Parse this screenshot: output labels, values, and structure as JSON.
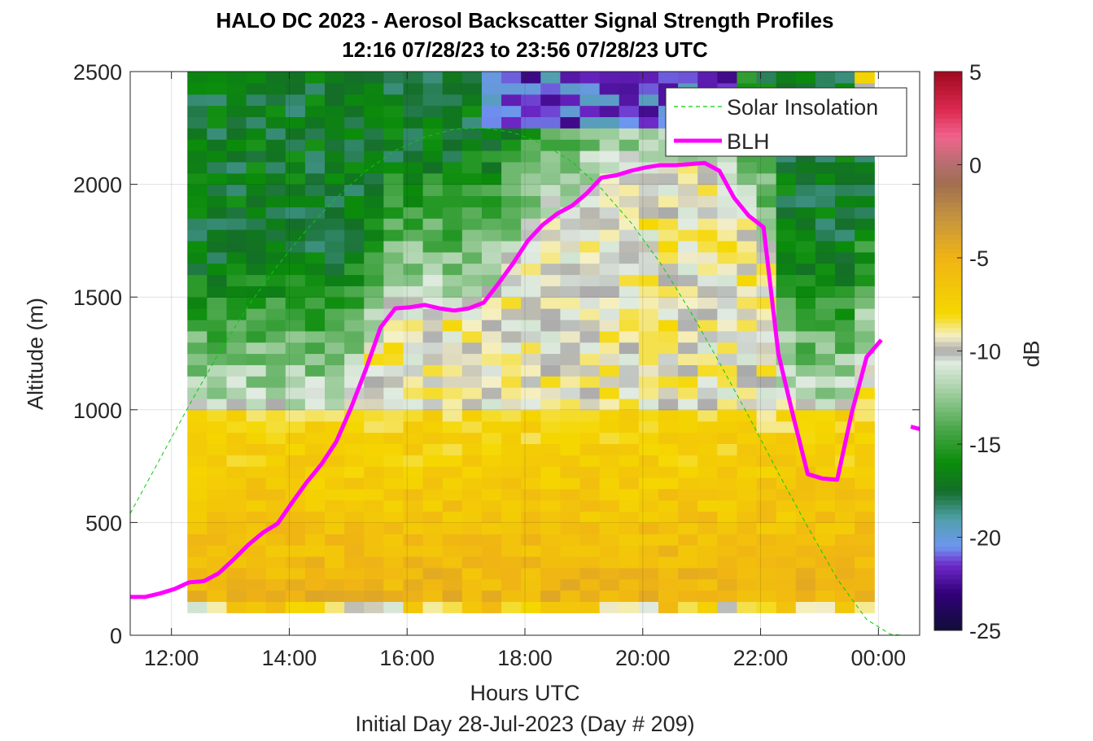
{
  "chart_data": {
    "type": "heatmap",
    "title": "HALO DC 2023 - Aerosol Backscatter Signal Strength Profiles",
    "subtitle": "12:16 07/28/23 to 23:56 07/28/23  UTC",
    "xlabel": "Hours UTC",
    "note": "Initial Day 28-Jul-2023 (Day # 209)",
    "ylabel": "Altitude (m)",
    "colorbar_label": "dB",
    "xlim": [
      11.3,
      24.7
    ],
    "ylim": [
      0,
      2500
    ],
    "x_tick_values": [
      12,
      14,
      16,
      18,
      20,
      22,
      24
    ],
    "x_tick_labels": [
      "12:00",
      "14:00",
      "16:00",
      "18:00",
      "20:00",
      "22:00",
      "00:00"
    ],
    "y_ticks": [
      0,
      500,
      1000,
      1500,
      2000,
      2500
    ],
    "clim": [
      -25,
      5
    ],
    "colorbar_ticks": [
      5,
      0,
      -5,
      -10,
      -15,
      -20,
      -25
    ],
    "grid": true,
    "legend_position": "top-right",
    "heatmap_x_range": [
      12.27,
      23.93
    ],
    "heatmap_y_range": [
      100,
      2500
    ],
    "series": [
      {
        "name": "Solar Insolation",
        "style": "dashed",
        "color": "#00d000",
        "x": [
          11.3,
          11.8,
          12.3,
          12.8,
          13.3,
          13.8,
          14.3,
          14.8,
          15.3,
          15.8,
          16.3,
          16.8,
          17.3,
          17.8,
          18.3,
          18.8,
          19.3,
          19.8,
          20.3,
          20.8,
          21.3,
          21.8,
          22.3,
          22.8,
          23.3,
          23.8,
          24.2,
          24.4,
          24.6
        ],
        "y": [
          540,
          780,
          1020,
          1250,
          1460,
          1640,
          1800,
          1940,
          2060,
          2150,
          2210,
          2245,
          2250,
          2230,
          2180,
          2100,
          1980,
          1830,
          1650,
          1440,
          1210,
          970,
          720,
          480,
          250,
          70,
          5,
          0,
          0
        ]
      },
      {
        "name": "BLH",
        "style": "solid",
        "color": "#ff00ff",
        "x": [
          11.3,
          11.55,
          11.8,
          12.05,
          12.3,
          12.55,
          12.8,
          13.05,
          13.3,
          13.55,
          13.8,
          14.05,
          14.3,
          14.55,
          14.8,
          15.05,
          15.3,
          15.55,
          15.8,
          16.05,
          16.3,
          16.55,
          16.8,
          17.05,
          17.3,
          17.55,
          17.8,
          18.05,
          18.3,
          18.55,
          18.8,
          19.05,
          19.3,
          19.55,
          19.8,
          20.05,
          20.3,
          20.55,
          20.8,
          21.05,
          21.3,
          21.55,
          21.8,
          22.05,
          22.3,
          22.55,
          22.8,
          23.05,
          23.3,
          23.55,
          23.8,
          24.05
        ],
        "y": [
          170,
          170,
          185,
          205,
          235,
          240,
          275,
          335,
          400,
          455,
          495,
          590,
          680,
          760,
          860,
          1010,
          1180,
          1365,
          1450,
          1455,
          1465,
          1450,
          1440,
          1450,
          1475,
          1560,
          1650,
          1750,
          1820,
          1870,
          1905,
          1960,
          2030,
          2040,
          2060,
          2075,
          2085,
          2085,
          2090,
          2095,
          2060,
          1940,
          1860,
          1810,
          1250,
          975,
          715,
          695,
          690,
          990,
          1235,
          1310
        ]
      },
      {
        "name": "",
        "style": "solid",
        "color": "#ff00ff",
        "x": [
          24.55,
          24.7
        ],
        "y": [
          925,
          915
        ]
      }
    ]
  },
  "legend": {
    "solar_label": "Solar Insolation",
    "blh_label": "BLH"
  }
}
